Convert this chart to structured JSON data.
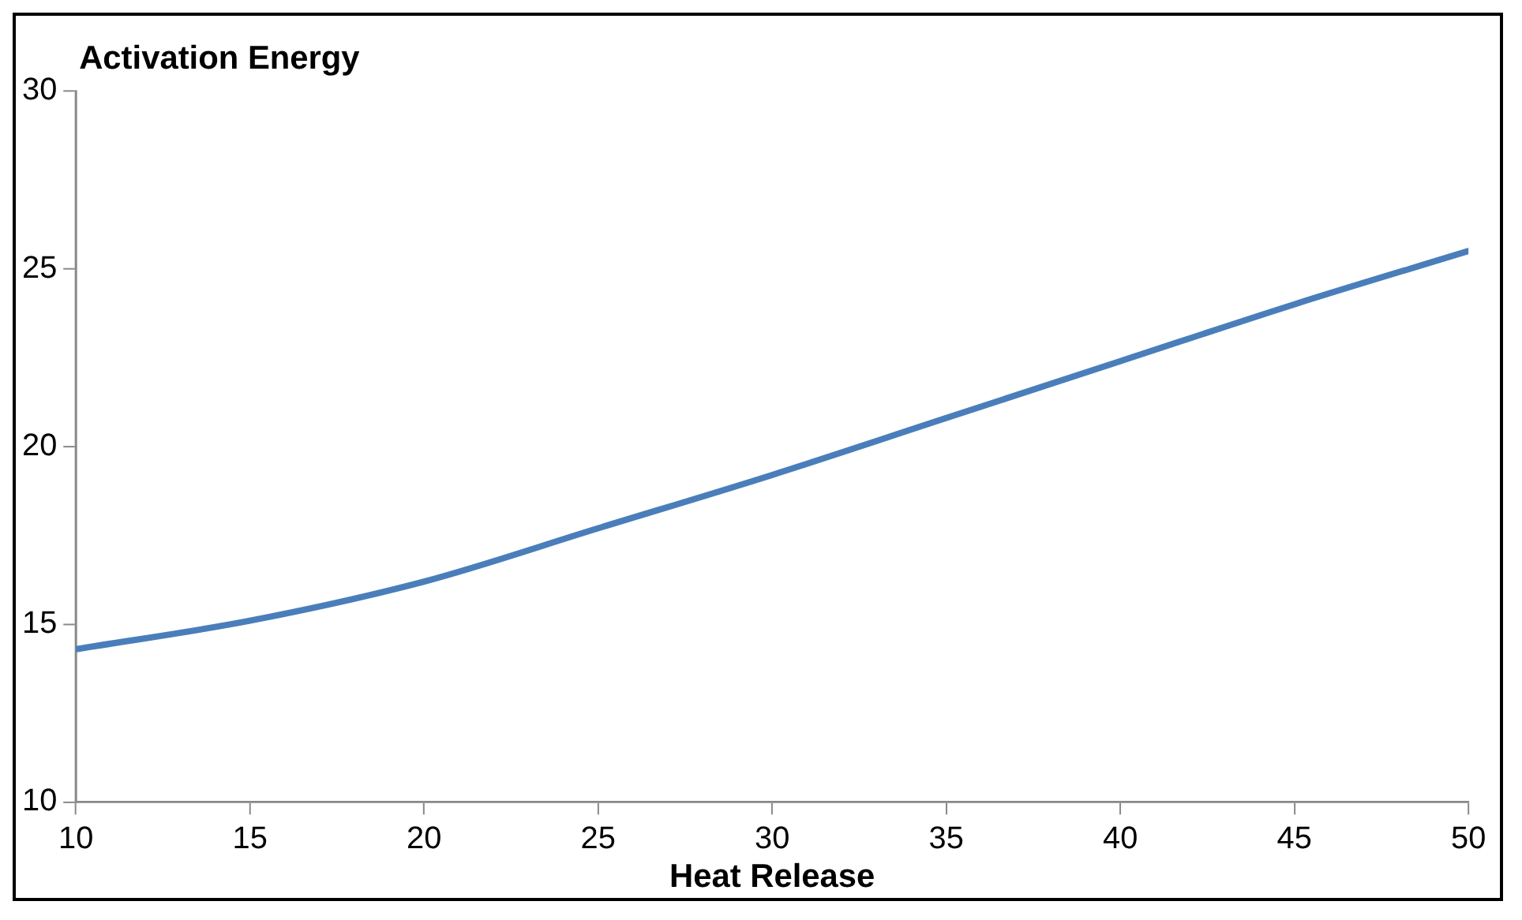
{
  "chart_data": {
    "type": "line",
    "xlabel": "Heat Release",
    "ylabel": "Activation Energy",
    "x": [
      10,
      15,
      20,
      25,
      30,
      35,
      40,
      45,
      50
    ],
    "series": [
      {
        "color": "#4a7ebb",
        "values": [
          14.3,
          15.1,
          16.2,
          17.7,
          19.2,
          20.8,
          22.4,
          24.0,
          25.5
        ]
      }
    ],
    "xlim": [
      10,
      50
    ],
    "xticks": [
      10,
      15,
      20,
      25,
      30,
      35,
      40,
      45,
      50
    ],
    "ylim": [
      10,
      30
    ],
    "yticks": [
      10,
      15,
      20,
      25,
      30
    ],
    "grid": false,
    "legend": false,
    "marker": "none",
    "line_style": "solid"
  }
}
